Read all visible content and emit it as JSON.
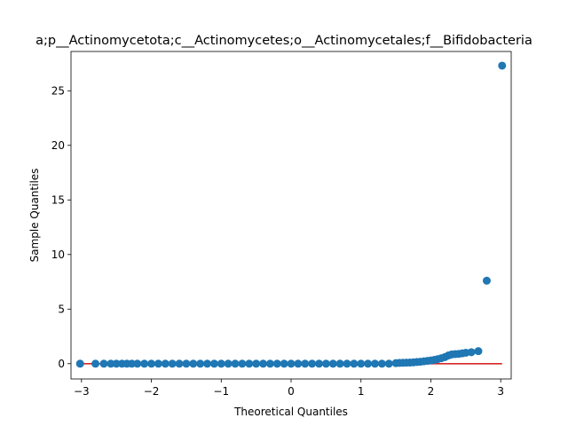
{
  "chart_data": {
    "type": "scatter",
    "title": "a;p__Actinomycetota;c__Actinomycetes;o__Actinomycetales;f__Bifidobacteria",
    "xlabel": "Theoretical Quantiles",
    "ylabel": "Sample Quantiles",
    "xlim": [
      -3.15,
      3.15
    ],
    "ylim": [
      -1.4,
      28.6
    ],
    "xticks": [
      -3,
      -2,
      -1,
      0,
      1,
      2,
      3
    ],
    "yticks": [
      0,
      5,
      10,
      15,
      20,
      25
    ],
    "grid": false,
    "legend": "none",
    "colors": {
      "points": "#1f77b4",
      "reference_line": "#d62728"
    },
    "reference_line": {
      "x": [
        -3.02,
        3.02
      ],
      "y": [
        0,
        0
      ]
    },
    "series": [
      {
        "x": [
          -3.02,
          -2.8,
          -2.68,
          -2.58,
          -2.5,
          -2.42,
          -2.35,
          -2.28,
          -2.2,
          -2.1,
          -2.0,
          -1.9,
          -1.8,
          -1.7,
          -1.6,
          -1.5,
          -1.4,
          -1.3,
          -1.2,
          -1.1,
          -1.0,
          -0.9,
          -0.8,
          -0.7,
          -0.6,
          -0.5,
          -0.4,
          -0.3,
          -0.2,
          -0.1,
          0.0,
          0.1,
          0.2,
          0.3,
          0.4,
          0.5,
          0.6,
          0.7,
          0.8,
          0.9,
          1.0,
          1.1,
          1.2,
          1.3,
          1.4,
          1.5,
          1.55,
          1.6,
          1.65,
          1.7,
          1.75,
          1.8,
          1.85,
          1.9,
          1.95,
          2.0,
          2.05,
          2.1,
          2.15,
          2.2,
          2.25,
          2.3,
          2.35,
          2.4,
          2.45,
          2.5,
          2.58,
          2.68,
          2.8,
          3.02
        ],
        "y": [
          0.0,
          0.0,
          0.0,
          0.0,
          0.0,
          0.0,
          0.0,
          0.0,
          0.0,
          0.0,
          0.0,
          0.0,
          0.0,
          0.0,
          0.0,
          0.0,
          0.0,
          0.0,
          0.0,
          0.0,
          0.0,
          0.0,
          0.0,
          0.0,
          0.0,
          0.0,
          0.0,
          0.0,
          0.0,
          0.0,
          0.0,
          0.0,
          0.0,
          0.0,
          0.0,
          0.0,
          0.0,
          0.0,
          0.0,
          0.0,
          0.0,
          0.0,
          0.0,
          0.0,
          0.0,
          0.05,
          0.07,
          0.08,
          0.09,
          0.1,
          0.12,
          0.15,
          0.18,
          0.22,
          0.26,
          0.3,
          0.35,
          0.42,
          0.5,
          0.6,
          0.75,
          0.85,
          0.88,
          0.9,
          0.95,
          1.0,
          1.05,
          1.15,
          7.6,
          27.3
        ]
      }
    ]
  }
}
